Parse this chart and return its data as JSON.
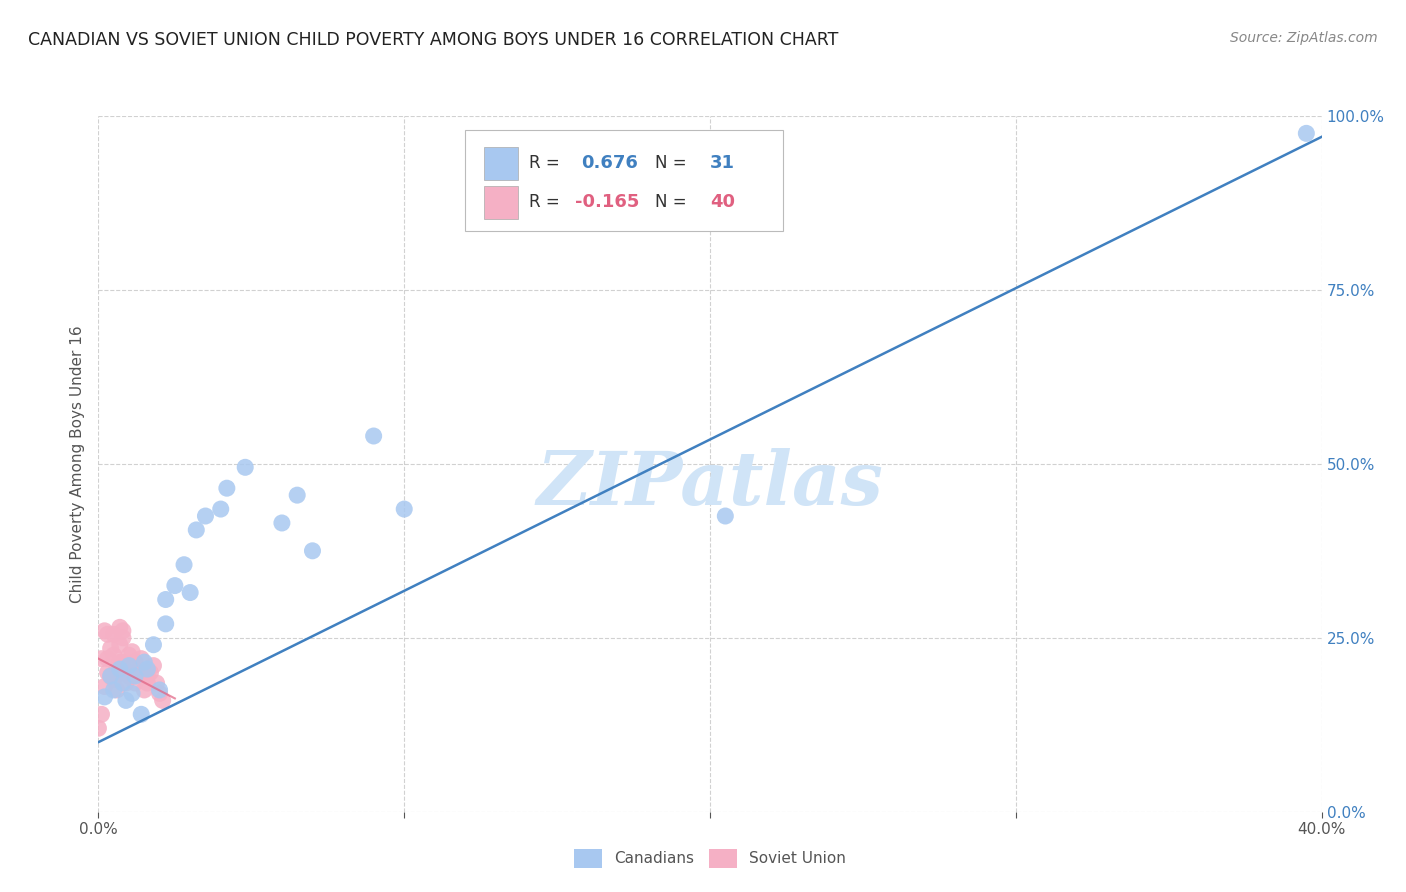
{
  "title": "CANADIAN VS SOVIET UNION CHILD POVERTY AMONG BOYS UNDER 16 CORRELATION CHART",
  "source": "Source: ZipAtlas.com",
  "ylabel": "Child Poverty Among Boys Under 16",
  "xlim": [
    0.0,
    0.4
  ],
  "ylim": [
    0.0,
    1.0
  ],
  "x_ticks": [
    0.0,
    0.1,
    0.2,
    0.3,
    0.4
  ],
  "x_tick_labels": [
    "0.0%",
    "",
    "",
    "",
    "40.0%"
  ],
  "y_ticks": [
    0.0,
    0.25,
    0.5,
    0.75,
    1.0
  ],
  "y_tick_labels_right": [
    "0.0%",
    "25.0%",
    "50.0%",
    "75.0%",
    "100.0%"
  ],
  "canadians_x": [
    0.002,
    0.004,
    0.005,
    0.007,
    0.008,
    0.009,
    0.01,
    0.011,
    0.012,
    0.014,
    0.015,
    0.016,
    0.018,
    0.02,
    0.022,
    0.022,
    0.025,
    0.028,
    0.03,
    0.032,
    0.035,
    0.04,
    0.042,
    0.048,
    0.06,
    0.065,
    0.07,
    0.09,
    0.1,
    0.205,
    0.395
  ],
  "canadians_y": [
    0.165,
    0.195,
    0.175,
    0.205,
    0.185,
    0.16,
    0.21,
    0.17,
    0.195,
    0.14,
    0.215,
    0.205,
    0.24,
    0.175,
    0.27,
    0.305,
    0.325,
    0.355,
    0.315,
    0.405,
    0.425,
    0.435,
    0.465,
    0.495,
    0.415,
    0.455,
    0.375,
    0.54,
    0.435,
    0.425,
    0.975
  ],
  "soviet_x": [
    0.0,
    0.001,
    0.001,
    0.002,
    0.002,
    0.003,
    0.003,
    0.003,
    0.004,
    0.004,
    0.005,
    0.005,
    0.005,
    0.006,
    0.006,
    0.007,
    0.007,
    0.007,
    0.008,
    0.008,
    0.008,
    0.009,
    0.009,
    0.01,
    0.01,
    0.011,
    0.011,
    0.012,
    0.012,
    0.013,
    0.014,
    0.015,
    0.015,
    0.016,
    0.016,
    0.017,
    0.018,
    0.019,
    0.02,
    0.021
  ],
  "soviet_y": [
    0.12,
    0.14,
    0.22,
    0.18,
    0.26,
    0.2,
    0.22,
    0.255,
    0.195,
    0.235,
    0.19,
    0.225,
    0.255,
    0.175,
    0.205,
    0.215,
    0.24,
    0.265,
    0.25,
    0.215,
    0.26,
    0.185,
    0.2,
    0.195,
    0.225,
    0.23,
    0.195,
    0.185,
    0.215,
    0.205,
    0.22,
    0.2,
    0.175,
    0.185,
    0.195,
    0.2,
    0.21,
    0.185,
    0.17,
    0.16
  ],
  "canadian_color": "#a8c8f0",
  "canadian_line_color": "#4080c0",
  "soviet_color": "#f5b0c5",
  "soviet_line_color": "#e06080",
  "watermark_color": "#d0e4f7",
  "background_color": "#ffffff",
  "grid_color": "#cccccc",
  "right_tick_color": "#4080c0",
  "legend_box_color": "#aaaaaa",
  "legend_R_canadian_color": "#4080c0",
  "legend_R_soviet_color": "#e06080",
  "legend_N_color": "#4080c0"
}
